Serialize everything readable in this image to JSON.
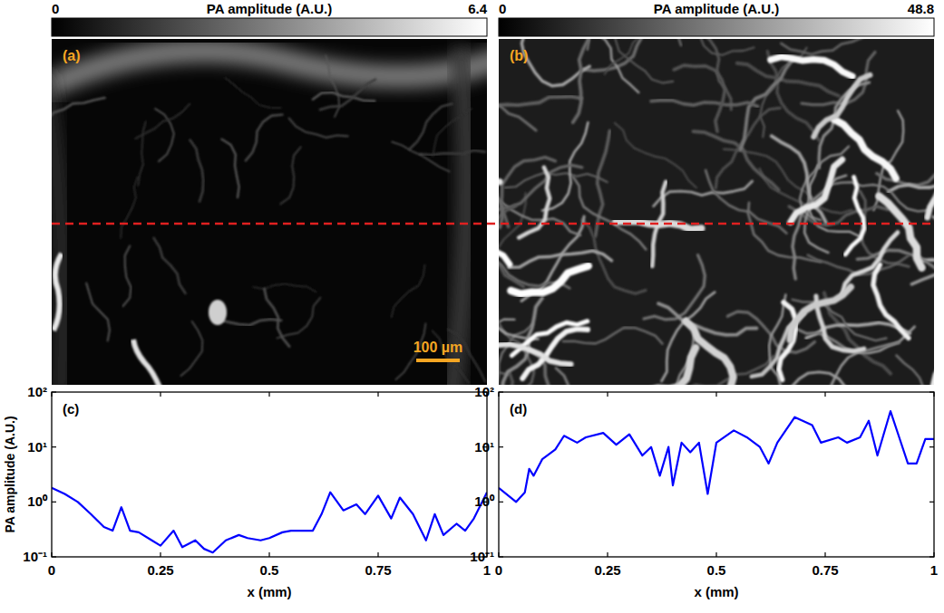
{
  "chart_data": [
    {
      "type": "image",
      "title": "(a)",
      "colorbar_label": "PA amplitude (A.U.)",
      "colorbar_range": [
        0,
        6.4
      ],
      "colorbar_ticks": [
        0,
        6.4
      ],
      "annotations": [
        "100 µm"
      ],
      "scale_bar_mm": 0.1
    },
    {
      "type": "image",
      "title": "(b)",
      "colorbar_label": "PA amplitude (A.U.)",
      "colorbar_range": [
        0,
        48.8
      ],
      "colorbar_ticks": [
        0,
        48.8
      ]
    },
    {
      "type": "line",
      "title": "(c)",
      "xlabel": "x (mm)",
      "ylabel": "PA amplitude (A.U.)",
      "log": "y",
      "color": "#0000ff",
      "xlim": [
        0,
        1
      ],
      "xticks": [
        0,
        0.25,
        0.5,
        0.75,
        1
      ],
      "ylim": [
        0.1,
        100
      ],
      "yticks": [
        {
          "value": 0.1,
          "label": "10⁻¹"
        },
        {
          "value": 1,
          "label": "10⁰"
        },
        {
          "value": 10,
          "label": "10¹"
        },
        {
          "value": 100,
          "label": "10²"
        }
      ],
      "x": [
        0,
        0.03,
        0.06,
        0.09,
        0.12,
        0.14,
        0.16,
        0.18,
        0.2,
        0.23,
        0.25,
        0.28,
        0.3,
        0.33,
        0.35,
        0.37,
        0.4,
        0.43,
        0.45,
        0.48,
        0.5,
        0.53,
        0.55,
        0.58,
        0.6,
        0.62,
        0.64,
        0.67,
        0.7,
        0.72,
        0.75,
        0.78,
        0.8,
        0.83,
        0.86,
        0.88,
        0.9,
        0.93,
        0.95,
        0.97,
        1
      ],
      "values": [
        1.8,
        1.4,
        1.0,
        0.6,
        0.35,
        0.3,
        0.8,
        0.3,
        0.28,
        0.2,
        0.16,
        0.3,
        0.15,
        0.2,
        0.14,
        0.12,
        0.2,
        0.25,
        0.22,
        0.2,
        0.22,
        0.28,
        0.3,
        0.3,
        0.3,
        0.6,
        1.5,
        0.7,
        0.9,
        0.6,
        1.3,
        0.5,
        1.2,
        0.6,
        0.2,
        0.6,
        0.25,
        0.4,
        0.3,
        0.5,
        1.5
      ]
    },
    {
      "type": "line",
      "title": "(d)",
      "xlabel": "x (mm)",
      "log": "y",
      "color": "#0000ff",
      "xlim": [
        0,
        1
      ],
      "xticks": [
        0,
        0.25,
        0.5,
        0.75,
        1
      ],
      "ylim": [
        0.1,
        100
      ],
      "yticks": [
        {
          "value": 0.1,
          "label": "10⁻¹"
        },
        {
          "value": 1,
          "label": "10⁰"
        },
        {
          "value": 10,
          "label": "10¹"
        },
        {
          "value": 100,
          "label": "10²"
        }
      ],
      "x": [
        0,
        0.04,
        0.06,
        0.07,
        0.08,
        0.1,
        0.13,
        0.15,
        0.18,
        0.2,
        0.24,
        0.27,
        0.3,
        0.33,
        0.35,
        0.37,
        0.39,
        0.4,
        0.42,
        0.44,
        0.46,
        0.48,
        0.5,
        0.54,
        0.57,
        0.6,
        0.62,
        0.64,
        0.68,
        0.72,
        0.74,
        0.78,
        0.8,
        0.83,
        0.85,
        0.87,
        0.9,
        0.92,
        0.94,
        0.96,
        0.98,
        1
      ],
      "values": [
        1.8,
        1.0,
        1.5,
        4,
        3,
        6,
        9,
        16,
        12,
        15,
        18,
        11,
        17,
        7,
        10,
        3,
        10,
        2,
        12,
        8,
        12,
        1.4,
        12,
        20,
        15,
        10,
        5,
        12,
        35,
        25,
        12,
        15,
        12,
        15,
        30,
        7,
        45,
        15,
        5,
        5,
        14,
        14
      ]
    }
  ]
}
